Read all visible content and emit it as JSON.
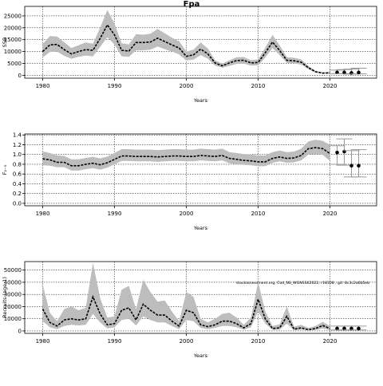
{
  "figure": {
    "title": "Fpa",
    "annotation": "stockassessment.org, Cod_NS_WGNSSK2022, r18108 , git: 8c3c2a6b5eb"
  },
  "chart_data": [
    {
      "type": "line",
      "ylabel": "SSB",
      "xlabel": "Years",
      "xlim": [
        1977.5,
        2026.5
      ],
      "ylim": [
        -1200,
        29000
      ],
      "xticks": [
        1980,
        1990,
        2000,
        2010,
        2020
      ],
      "yticks": [
        0,
        5000,
        10000,
        15000,
        20000,
        25000
      ],
      "ytick_labels": [
        "0",
        "5000",
        "10000",
        "15000",
        "20000",
        "25000"
      ],
      "grid": true,
      "years": [
        1980,
        1981,
        1982,
        1983,
        1984,
        1985,
        1986,
        1987,
        1988,
        1989,
        1990,
        1991,
        1992,
        1993,
        1994,
        1995,
        1996,
        1997,
        1998,
        1999,
        2000,
        2001,
        2002,
        2003,
        2004,
        2005,
        2006,
        2007,
        2008,
        2009,
        2010,
        2011,
        2012,
        2013,
        2014,
        2015,
        2016,
        2017,
        2018,
        2019,
        2020
      ],
      "estimate": [
        10000,
        12800,
        13000,
        10800,
        9000,
        10000,
        10800,
        10500,
        15500,
        21200,
        17000,
        10500,
        10200,
        13800,
        13800,
        14000,
        15600,
        14200,
        12800,
        11500,
        8000,
        8600,
        11000,
        9000,
        5200,
        4000,
        5200,
        6200,
        6300,
        5200,
        5400,
        9500,
        14000,
        10400,
        6300,
        6100,
        5500,
        3200,
        1500,
        900,
        1000
      ],
      "lower": [
        7500,
        9800,
        10000,
        8200,
        7000,
        7800,
        8300,
        8000,
        12000,
        16000,
        13000,
        8000,
        7800,
        10500,
        10500,
        10800,
        12100,
        11000,
        10000,
        8800,
        6200,
        6600,
        8500,
        7000,
        4100,
        3200,
        4000,
        4800,
        4900,
        4100,
        4200,
        7500,
        11500,
        8500,
        5200,
        5000,
        4500,
        2600,
        1100,
        700,
        700
      ],
      "upper": [
        13200,
        16500,
        16300,
        13900,
        11500,
        12700,
        13800,
        13300,
        20000,
        27500,
        21800,
        13500,
        13000,
        17300,
        17100,
        17500,
        19500,
        17700,
        15800,
        14300,
        10000,
        10800,
        13800,
        11300,
        6300,
        4900,
        6300,
        7600,
        7700,
        6400,
        6700,
        11700,
        17000,
        12600,
        7600,
        7400,
        6700,
        3900,
        1900,
        1200,
        1400
      ],
      "projection": {
        "years": [
          2021,
          2022,
          2023,
          2024
        ],
        "points": [
          1200,
          1200,
          1000,
          1200
        ],
        "lower": [
          700,
          700,
          500,
          600
        ],
        "upper": [
          2200,
          2400,
          2600,
          3000
        ]
      }
    },
    {
      "type": "line",
      "ylabel": "F₂₋₅",
      "xlabel": "Years",
      "xlim": [
        1977.5,
        2026.5
      ],
      "ylim": [
        -0.05,
        1.42
      ],
      "xticks": [
        1980,
        1990,
        2000,
        2010,
        2020
      ],
      "yticks": [
        0.0,
        0.2,
        0.4,
        0.6,
        0.8,
        1.0,
        1.2,
        1.4
      ],
      "ytick_labels": [
        "0.0",
        "0.2",
        "0.4",
        "0.6",
        "0.8",
        "1.0",
        "1.2",
        "1.4"
      ],
      "grid": true,
      "years": [
        1980,
        1981,
        1982,
        1983,
        1984,
        1985,
        1986,
        1987,
        1988,
        1989,
        1990,
        1991,
        1992,
        1993,
        1994,
        1995,
        1996,
        1997,
        1998,
        1999,
        2000,
        2001,
        2002,
        2003,
        2004,
        2005,
        2006,
        2007,
        2008,
        2009,
        2010,
        2011,
        2012,
        2013,
        2014,
        2015,
        2016,
        2017,
        2018,
        2019,
        2020
      ],
      "estimate": [
        0.91,
        0.89,
        0.84,
        0.84,
        0.77,
        0.77,
        0.8,
        0.82,
        0.79,
        0.83,
        0.9,
        0.97,
        0.97,
        0.96,
        0.96,
        0.96,
        0.95,
        0.96,
        0.97,
        0.97,
        0.96,
        0.96,
        0.98,
        0.97,
        0.96,
        0.98,
        0.92,
        0.9,
        0.88,
        0.87,
        0.85,
        0.85,
        0.92,
        0.95,
        0.92,
        0.93,
        0.98,
        1.12,
        1.14,
        1.12,
        1.02
      ],
      "lower": [
        0.78,
        0.77,
        0.74,
        0.74,
        0.67,
        0.67,
        0.7,
        0.72,
        0.69,
        0.73,
        0.8,
        0.87,
        0.87,
        0.86,
        0.86,
        0.86,
        0.85,
        0.86,
        0.87,
        0.87,
        0.86,
        0.86,
        0.88,
        0.87,
        0.86,
        0.88,
        0.82,
        0.8,
        0.79,
        0.78,
        0.76,
        0.76,
        0.83,
        0.86,
        0.83,
        0.84,
        0.88,
        1.0,
        1.01,
        0.99,
        0.87
      ],
      "upper": [
        1.06,
        1.03,
        0.98,
        0.97,
        0.9,
        0.9,
        0.93,
        0.95,
        0.92,
        0.96,
        1.03,
        1.11,
        1.11,
        1.1,
        1.1,
        1.1,
        1.09,
        1.1,
        1.11,
        1.11,
        1.1,
        1.1,
        1.12,
        1.11,
        1.1,
        1.12,
        1.05,
        1.03,
        1.01,
        1.0,
        0.98,
        0.98,
        1.05,
        1.08,
        1.05,
        1.06,
        1.12,
        1.27,
        1.3,
        1.28,
        1.2
      ],
      "projection": {
        "years": [
          2021,
          2022,
          2023,
          2024
        ],
        "points": [
          1.04,
          1.06,
          0.77,
          0.77
        ],
        "lower": [
          0.8,
          0.78,
          0.54,
          0.54
        ],
        "upper": [
          1.18,
          1.32,
          1.08,
          1.1
        ]
      }
    },
    {
      "type": "line",
      "ylabel": "Recruits (age 1)",
      "xlabel": "Years",
      "xlim": [
        1977.5,
        2026.5
      ],
      "ylim": [
        -2000,
        57000
      ],
      "xticks": [
        1980,
        1990,
        2000,
        2010,
        2020
      ],
      "yticks": [
        0,
        10000,
        20000,
        30000,
        40000,
        50000
      ],
      "ytick_labels": [
        "0",
        "10000",
        "20000",
        "30000",
        "40000",
        "50000"
      ],
      "grid": true,
      "years": [
        1980,
        1981,
        1982,
        1983,
        1984,
        1985,
        1986,
        1987,
        1988,
        1989,
        1990,
        1991,
        1992,
        1993,
        1994,
        1995,
        1996,
        1997,
        1998,
        1999,
        2000,
        2001,
        2002,
        2003,
        2004,
        2005,
        2006,
        2007,
        2008,
        2009,
        2010,
        2011,
        2012,
        2013,
        2014,
        2015,
        2016,
        2017,
        2018,
        2019,
        2020
      ],
      "estimate": [
        18000,
        7000,
        4000,
        9000,
        10000,
        9000,
        10000,
        28000,
        14000,
        5000,
        6000,
        17000,
        19000,
        9000,
        22000,
        17000,
        13000,
        13000,
        8000,
        4000,
        17000,
        15000,
        5000,
        3500,
        5000,
        8000,
        8000,
        6000,
        2500,
        6000,
        26000,
        10000,
        2000,
        2500,
        12000,
        1500,
        2500,
        1000,
        2000,
        4500,
        2000
      ],
      "lower": [
        8000,
        3000,
        1500,
        4000,
        5000,
        4500,
        5000,
        14000,
        7000,
        2000,
        3000,
        9000,
        10000,
        4500,
        12000,
        9000,
        7000,
        7000,
        4000,
        1500,
        9000,
        8000,
        2500,
        1500,
        2500,
        4000,
        4000,
        3000,
        1000,
        3000,
        16000,
        6000,
        800,
        1000,
        6000,
        500,
        1000,
        400,
        800,
        2000,
        800
      ],
      "upper": [
        38000,
        15000,
        8000,
        18000,
        20000,
        17000,
        19000,
        56000,
        27000,
        11000,
        12000,
        34000,
        37000,
        18000,
        42000,
        32000,
        24000,
        25000,
        16000,
        8000,
        32000,
        28000,
        10000,
        7000,
        10000,
        14000,
        15000,
        11000,
        5000,
        11000,
        40000,
        16000,
        4000,
        5500,
        20000,
        3500,
        5000,
        2500,
        4000,
        7500,
        4000
      ],
      "projection": {
        "years": [
          2021,
          2022,
          2023,
          2024
        ],
        "points": [
          2000,
          2000,
          2000,
          2000
        ],
        "lower": [
          800,
          800,
          800,
          800
        ],
        "upper": [
          4000,
          4000,
          4000,
          4000
        ]
      }
    }
  ]
}
